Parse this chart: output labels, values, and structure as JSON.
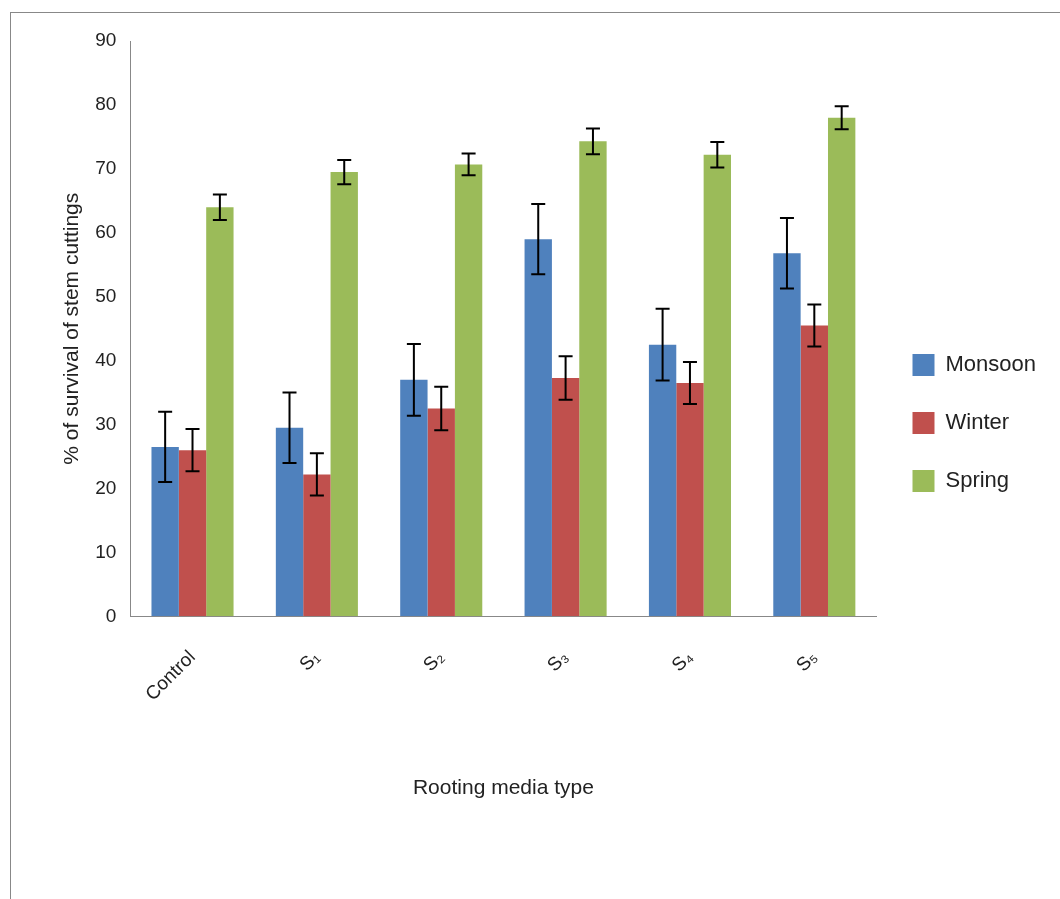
{
  "chart_data": {
    "type": "bar",
    "xlabel": "Rooting media type",
    "ylabel": "% of survival of stem cuttings",
    "categories": [
      "Control",
      "S₁",
      "S₂",
      "S₃",
      "S₄",
      "S₅"
    ],
    "series": [
      {
        "name": "Monsoon",
        "color": "#4f81bd",
        "values": [
          26.5,
          29.5,
          37,
          59,
          42.5,
          56.8
        ],
        "errors": [
          5.5,
          5.5,
          5.6,
          5.5,
          5.6,
          5.5
        ]
      },
      {
        "name": "Winter",
        "color": "#c0504d",
        "values": [
          26,
          22.2,
          32.5,
          37.3,
          36.5,
          45.5
        ],
        "errors": [
          3.3,
          3.3,
          3.4,
          3.4,
          3.3,
          3.3
        ]
      },
      {
        "name": "Spring",
        "color": "#9bbb59",
        "values": [
          64,
          69.5,
          70.7,
          74.3,
          72.2,
          78
        ],
        "errors": [
          2,
          1.9,
          1.7,
          2,
          2,
          1.8
        ]
      }
    ],
    "ylim": [
      0,
      90
    ],
    "yticks": [
      0,
      10,
      20,
      30,
      40,
      50,
      60,
      70,
      80,
      90
    ],
    "grid": false,
    "legend": "right"
  }
}
